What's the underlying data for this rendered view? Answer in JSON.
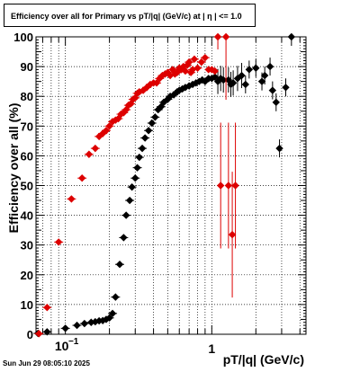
{
  "window": {
    "title": "Efficiency over all for Primary vs pT/|q| (GeV/c) at |  η  | <= 1.0",
    "footer": "Sun Jun 29 08:05:10 2025"
  },
  "colors": {
    "series_black": "#000000",
    "series_red": "#dd0000",
    "grid": "#000000"
  },
  "chart_data": {
    "type": "scatter",
    "title": "Efficiency over all for Primary vs pT/|q| (GeV/c) at |  η  | <= 1.0",
    "xlabel": "pT/|q| (GeV/c)",
    "ylabel": "Efficiency over all (%)",
    "xscale": "log",
    "xlim": [
      0.063,
      4.4
    ],
    "ylim": [
      0,
      100
    ],
    "yticks": [
      0,
      10,
      20,
      30,
      40,
      50,
      60,
      70,
      80,
      90,
      100
    ],
    "xticks_labels": [
      "10^{-1}",
      "1"
    ],
    "grid": true,
    "legend": "none",
    "series": [
      {
        "color": "black",
        "points": [
          [
            0.065,
            0.3
          ],
          [
            0.075,
            0.8
          ],
          [
            0.1,
            2.0
          ],
          [
            0.12,
            3.0
          ],
          [
            0.135,
            3.6
          ],
          [
            0.15,
            4.0
          ],
          [
            0.16,
            4.2
          ],
          [
            0.17,
            4.5
          ],
          [
            0.18,
            4.6
          ],
          [
            0.19,
            5.0
          ],
          [
            0.2,
            5.5
          ],
          [
            0.21,
            7.0
          ],
          [
            0.22,
            12.5
          ],
          [
            0.235,
            23.5
          ],
          [
            0.25,
            32.5
          ],
          [
            0.26,
            40.0
          ],
          [
            0.275,
            45.0
          ],
          [
            0.285,
            49.5
          ],
          [
            0.3,
            52.5
          ],
          [
            0.31,
            56.0
          ],
          [
            0.32,
            59.5
          ],
          [
            0.335,
            62.5
          ],
          [
            0.35,
            66.0
          ],
          [
            0.37,
            68.5
          ],
          [
            0.39,
            71.0
          ],
          [
            0.41,
            73.0
          ],
          [
            0.43,
            75.5
          ],
          [
            0.45,
            76.5
          ],
          [
            0.47,
            78.0
          ],
          [
            0.5,
            79.0
          ],
          [
            0.52,
            80.0
          ],
          [
            0.55,
            80.5
          ],
          [
            0.58,
            81.5
          ],
          [
            0.6,
            82.0
          ],
          [
            0.63,
            82.5
          ],
          [
            0.66,
            83.0
          ],
          [
            0.7,
            83.5
          ],
          [
            0.74,
            84.0
          ],
          [
            0.78,
            84.5
          ],
          [
            0.82,
            85.0
          ],
          [
            0.86,
            85.5
          ],
          [
            0.9,
            85.0
          ],
          [
            0.95,
            86.0
          ],
          [
            1.0,
            86.0
          ],
          [
            1.05,
            86.5
          ],
          [
            1.1,
            85.0
          ],
          [
            1.15,
            86.0
          ],
          [
            1.2,
            85.5
          ],
          [
            1.3,
            85.5
          ],
          [
            1.35,
            84.0
          ],
          [
            1.4,
            84.5
          ],
          [
            1.5,
            86.0
          ],
          [
            1.6,
            87.0
          ],
          [
            1.7,
            84.0
          ],
          [
            1.8,
            89.0
          ],
          [
            2.0,
            89.5
          ],
          [
            2.2,
            85.0
          ],
          [
            2.3,
            87.0
          ],
          [
            2.5,
            90.0
          ],
          [
            2.6,
            82.0
          ],
          [
            2.75,
            78.0
          ],
          [
            2.9,
            62.5
          ],
          [
            3.2,
            83.0
          ],
          [
            3.5,
            100.0
          ]
        ]
      },
      {
        "color": "red",
        "points": [
          [
            0.066,
            0.2
          ],
          [
            0.075,
            9.0
          ],
          [
            0.09,
            31.0
          ],
          [
            0.11,
            45.5
          ],
          [
            0.13,
            52.5
          ],
          [
            0.145,
            60.5
          ],
          [
            0.16,
            62.5
          ],
          [
            0.17,
            66.5
          ],
          [
            0.18,
            67.5
          ],
          [
            0.19,
            68.5
          ],
          [
            0.2,
            70.0
          ],
          [
            0.21,
            71.5
          ],
          [
            0.22,
            72.0
          ],
          [
            0.23,
            72.5
          ],
          [
            0.24,
            74.0
          ],
          [
            0.25,
            74.5
          ],
          [
            0.26,
            75.5
          ],
          [
            0.27,
            77.0
          ],
          [
            0.28,
            77.5
          ],
          [
            0.29,
            79.0
          ],
          [
            0.3,
            79.5
          ],
          [
            0.31,
            81.0
          ],
          [
            0.32,
            81.5
          ],
          [
            0.34,
            82.0
          ],
          [
            0.36,
            83.0
          ],
          [
            0.38,
            84.0
          ],
          [
            0.4,
            84.5
          ],
          [
            0.42,
            84.5
          ],
          [
            0.44,
            86.0
          ],
          [
            0.46,
            87.0
          ],
          [
            0.48,
            87.5
          ],
          [
            0.5,
            88.0
          ],
          [
            0.52,
            87.0
          ],
          [
            0.54,
            89.0
          ],
          [
            0.56,
            87.5
          ],
          [
            0.58,
            88.0
          ],
          [
            0.6,
            89.5
          ],
          [
            0.62,
            89.0
          ],
          [
            0.64,
            90.0
          ],
          [
            0.66,
            88.5
          ],
          [
            0.68,
            90.5
          ],
          [
            0.7,
            91.5
          ],
          [
            0.72,
            88.0
          ],
          [
            0.74,
            89.0
          ],
          [
            0.76,
            92.5
          ],
          [
            0.8,
            89.5
          ],
          [
            0.85,
            91.5
          ],
          [
            0.9,
            93.0
          ],
          [
            0.95,
            89.0
          ],
          [
            1.0,
            89.0
          ],
          [
            1.05,
            88.5
          ],
          [
            1.1,
            100.0
          ],
          [
            1.15,
            50.0
          ],
          [
            1.25,
            100.0
          ],
          [
            1.3,
            50.0
          ],
          [
            1.38,
            33.5
          ],
          [
            1.45,
            50.0
          ]
        ]
      }
    ]
  }
}
